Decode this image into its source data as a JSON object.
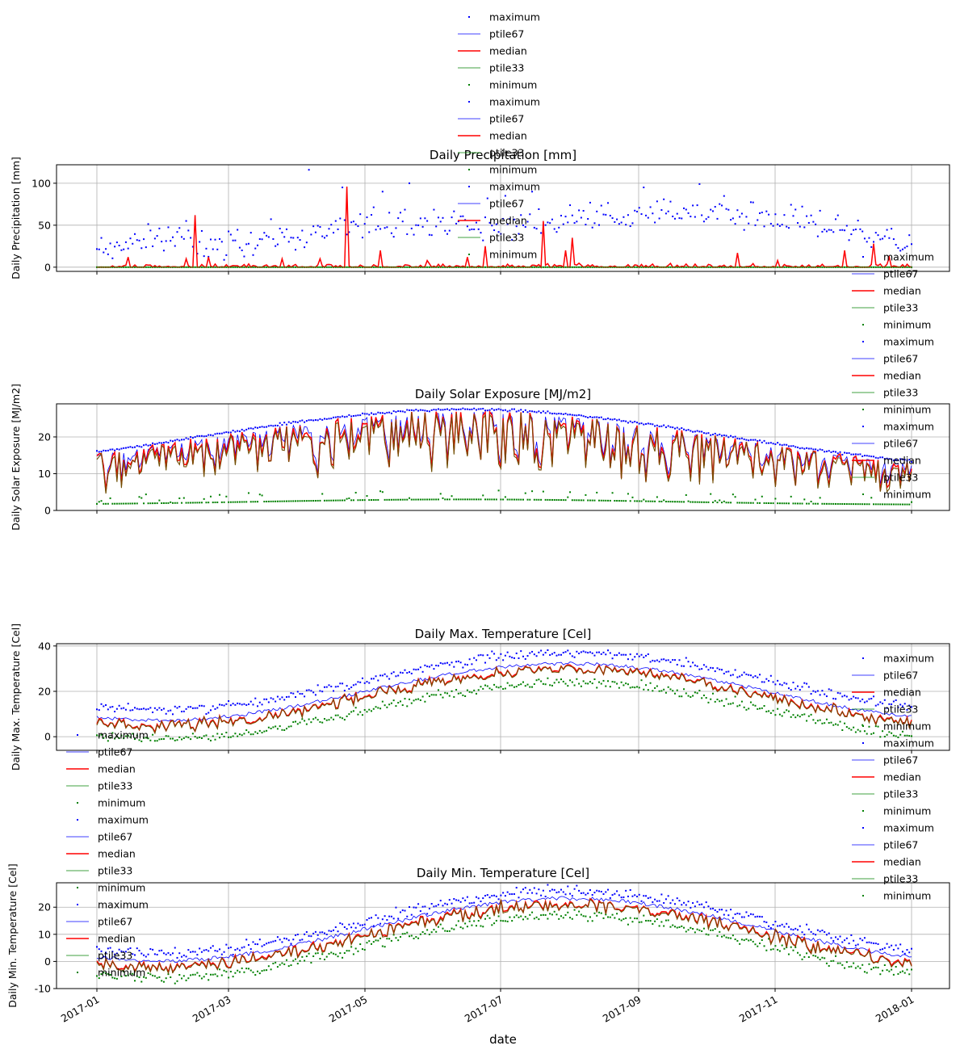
{
  "figure": {
    "xlabel": "date",
    "date_ticks": [
      "2017-01",
      "2017-03",
      "2017-05",
      "2017-07",
      "2017-09",
      "2017-11",
      "2018-01"
    ]
  },
  "series_style": [
    {
      "name": "maximum",
      "kind": "dots",
      "color": "#0000ff"
    },
    {
      "name": "ptile67",
      "kind": "line",
      "color": "#0000ff"
    },
    {
      "name": "median",
      "kind": "line",
      "color": "#ff0000"
    },
    {
      "name": "ptile33",
      "kind": "line",
      "color": "#008000"
    },
    {
      "name": "minimum",
      "kind": "dots",
      "color": "#008000"
    }
  ],
  "chart_data": [
    {
      "type": "scatter",
      "title": "Daily Precipitation [mm]",
      "ylabel": "Daily Precipitation [mm]",
      "xlim": [
        "2016-12-18",
        "2018-01-09"
      ],
      "ylim": [
        -5,
        122
      ],
      "yticks": [
        0,
        50,
        100
      ],
      "grid": true,
      "x": [
        "2017-01-01",
        "2018-01-01"
      ],
      "series": [
        {
          "name": "maximum",
          "values": [],
          "note_values": "daily points ranging roughly 0 to 116"
        },
        {
          "name": "ptile67",
          "values": [
            0,
            0
          ]
        },
        {
          "name": "median",
          "values": [
            0,
            0
          ]
        },
        {
          "name": "ptile33",
          "values": [
            0,
            0
          ]
        },
        {
          "name": "minimum",
          "values": [
            0,
            0
          ]
        }
      ],
      "features": {
        "max_knots": [
          [
            0,
            20
          ],
          [
            20,
            35
          ],
          [
            40,
            35
          ],
          [
            60,
            25
          ],
          [
            80,
            35
          ],
          [
            100,
            40
          ],
          [
            120,
            55
          ],
          [
            140,
            55
          ],
          [
            160,
            50
          ],
          [
            180,
            45
          ],
          [
            200,
            55
          ],
          [
            220,
            60
          ],
          [
            240,
            60
          ],
          [
            260,
            65
          ],
          [
            280,
            65
          ],
          [
            300,
            60
          ],
          [
            320,
            50
          ],
          [
            340,
            40
          ],
          [
            365,
            25
          ]
        ],
        "max_spread": 15,
        "max_spikes": [
          [
            95,
            116
          ],
          [
            110,
            95
          ],
          [
            128,
            90
          ],
          [
            140,
            100
          ],
          [
            175,
            82
          ],
          [
            183,
            85
          ],
          [
            195,
            90
          ],
          [
            245,
            95
          ],
          [
            270,
            99
          ]
        ],
        "median_spikes": [
          [
            14,
            12
          ],
          [
            40,
            10
          ],
          [
            44,
            62
          ],
          [
            50,
            12
          ],
          [
            83,
            10
          ],
          [
            100,
            10
          ],
          [
            112,
            96
          ],
          [
            127,
            20
          ],
          [
            148,
            8
          ],
          [
            166,
            12
          ],
          [
            174,
            25
          ],
          [
            200,
            55
          ],
          [
            210,
            20
          ],
          [
            213,
            35
          ],
          [
            287,
            17
          ],
          [
            305,
            8
          ],
          [
            335,
            20
          ],
          [
            348,
            28
          ],
          [
            355,
            12
          ]
        ],
        "median_noise": 3
      },
      "legend": {
        "location": "upper center",
        "repeats": 3,
        "loc_x": 560,
        "loc_y": 12
      }
    },
    {
      "type": "scatter",
      "title": "Daily Solar Exposure [MJ/m2]",
      "ylabel": "Daily Solar Exposure [MJ/m2]",
      "xlim": [
        "2016-12-18",
        "2018-01-09"
      ],
      "ylim": [
        0,
        29
      ],
      "yticks": [
        0,
        10,
        20
      ],
      "grid": true,
      "x": [
        "2017-01-01",
        "2018-01-01"
      ],
      "features": {
        "max_curve": {
          "base": 9.5,
          "amplitude": 18,
          "peak_day": 165,
          "width": 115
        },
        "median_range": [
          2,
          26
        ],
        "min_level": [
          1.5,
          5
        ]
      },
      "legend": {
        "location": "right",
        "repeats": 3,
        "loc_x": 1052,
        "loc_y": 308
      }
    },
    {
      "type": "scatter",
      "title": "Daily Max. Temperature [Cel]",
      "ylabel": "Daily Max. Temperature [Cel]",
      "xlim": [
        "2016-12-18",
        "2018-01-09"
      ],
      "ylim": [
        -6,
        41
      ],
      "yticks": [
        0,
        20,
        40
      ],
      "grid": true,
      "x": [
        "2017-01-01",
        "2018-01-01"
      ],
      "features": {
        "median_curve": {
          "low": 5,
          "high": 30,
          "peak_day": 210
        },
        "max_offset": 7,
        "min_offset": -6
      },
      "legend": {
        "location": "split",
        "repeats": 3
      }
    },
    {
      "type": "scatter",
      "title": "Daily Min. Temperature [Cel]",
      "ylabel": "Daily Min. Temperature [Cel]",
      "xlim": [
        "2016-12-18",
        "2018-01-09"
      ],
      "ylim": [
        -10,
        29
      ],
      "yticks": [
        -10,
        0,
        10,
        20
      ],
      "grid": true,
      "x": [
        "2017-01-01",
        "2018-01-01"
      ],
      "features": {
        "median_curve": {
          "low": -2,
          "high": 21,
          "peak_day": 210
        },
        "max_offset": 5,
        "min_offset": -4
      },
      "legend": {
        "location": "left",
        "repeats": 2
      }
    }
  ]
}
